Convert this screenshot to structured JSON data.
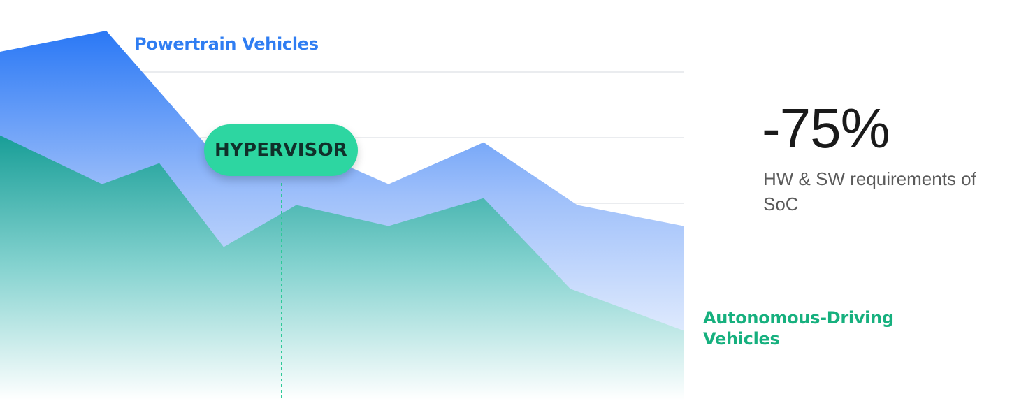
{
  "chart_data": {
    "type": "area",
    "title": "",
    "xlabel": "",
    "ylabel": "",
    "x": [
      0,
      1,
      2,
      3,
      4,
      5,
      6,
      7,
      8,
      9
    ],
    "xlim": [
      0,
      9
    ],
    "ylim": [
      0,
      5
    ],
    "grid": "horizontal",
    "series": [
      {
        "name": "Powertrain Vehicles",
        "color": "#2f7df2",
        "values": [
          5.0,
          5.3,
          3.4,
          3.7,
          3.1,
          3.7,
          2.8,
          2.5,
          null,
          null
        ]
      },
      {
        "name": "Autonomous-Driving Vehicles",
        "color": "#16b07e",
        "values": [
          3.8,
          3.1,
          3.4,
          2.2,
          2.8,
          2.5,
          2.9,
          1.6,
          1.0,
          null
        ]
      }
    ],
    "annotations": [
      {
        "label": "HYPERVISOR",
        "x": 3.3
      }
    ]
  },
  "labels": {
    "powertrain": "Powertrain Vehicles",
    "autonomous": "Autonomous-Driving Vehicles",
    "badge": "HYPERVISOR"
  },
  "kpi": {
    "value": "-75%",
    "description": "HW & SW requirements of SoC"
  },
  "colors": {
    "powertrain": "#2f7df2",
    "autonomous": "#16b07e",
    "badge": "#2dd6a1"
  }
}
